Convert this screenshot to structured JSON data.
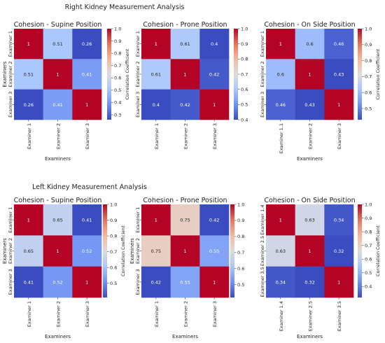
{
  "figure": {
    "sections": [
      {
        "title": "Right Kidney Measurement Analysis"
      },
      {
        "title": "Left Kidney Measurement Analysis"
      }
    ]
  },
  "colorbar_label": "Correlation Coefficient",
  "colormap": {
    "name": "coolwarm",
    "stops": [
      "#3b4cc0",
      "#6f92f3",
      "#aac7fd",
      "#dddcdc",
      "#f7b89c",
      "#e7745b",
      "#b40426"
    ]
  },
  "chart_data": [
    {
      "type": "heatmap",
      "title": "Cohesion - Supine Position",
      "xlabel": "Examiners",
      "ylabel": "Examiners",
      "x_ticks": [
        "Examiner 1",
        "Examiner 2",
        "Examiner 3"
      ],
      "y_ticks": [
        "Examiner 1",
        "Examiner 2",
        "Examiner 3"
      ],
      "values": [
        [
          1,
          0.51,
          0.26
        ],
        [
          0.51,
          1,
          0.41
        ],
        [
          0.26,
          0.41,
          1
        ]
      ],
      "labels": [
        [
          "1",
          "0.51",
          "0.26"
        ],
        [
          "0.51",
          "1",
          "0.41"
        ],
        [
          "0.26",
          "0.41",
          "1"
        ]
      ],
      "vmin": 0.26,
      "vmax": 1,
      "colorbar_ticks": [
        "1.0",
        "0.9",
        "0.8",
        "0.7",
        "0.6",
        "0.5",
        "0.4",
        "0.3"
      ],
      "colorbar_tick_values": [
        1.0,
        0.9,
        0.8,
        0.7,
        0.6,
        0.5,
        0.4,
        0.3
      ],
      "show_colorbar_label": true
    },
    {
      "type": "heatmap",
      "title": "Cohesion - Prone Position",
      "xlabel": "",
      "ylabel": "",
      "x_ticks": [
        "Examiner 1",
        "Examiner 2",
        "Examiner 3"
      ],
      "y_ticks": [
        "Examiner 1",
        "Examiner 2",
        "Examiner 3"
      ],
      "values": [
        [
          1,
          0.61,
          0.4
        ],
        [
          0.61,
          1,
          0.42
        ],
        [
          0.4,
          0.42,
          1
        ]
      ],
      "labels": [
        [
          "1",
          "0.61",
          "0.4"
        ],
        [
          "0.61",
          "1",
          "0.42"
        ],
        [
          "0.4",
          "0.42",
          "1"
        ]
      ],
      "vmin": 0.4,
      "vmax": 1,
      "colorbar_ticks": [
        "1.0",
        "0.9",
        "0.8",
        "0.7",
        "0.6",
        "0.5",
        "0.4"
      ],
      "colorbar_tick_values": [
        1.0,
        0.9,
        0.8,
        0.7,
        0.6,
        0.5,
        0.4
      ],
      "show_colorbar_label": false
    },
    {
      "type": "heatmap",
      "title": "Cohesion - On Side Position",
      "xlabel": "Examiners",
      "ylabel": "",
      "x_ticks": [
        "Examiner 1.1",
        "Examiner 2",
        "Examiner 3"
      ],
      "y_ticks": [
        "Examiner 1",
        "Examiner 2",
        "Examiner 3"
      ],
      "values": [
        [
          1,
          0.6,
          0.46
        ],
        [
          0.6,
          1,
          0.43
        ],
        [
          0.46,
          0.43,
          1
        ]
      ],
      "labels": [
        [
          "1",
          "0.6",
          "0.46"
        ],
        [
          "0.6",
          "1",
          "0.43"
        ],
        [
          "0.46",
          "0.43",
          "1"
        ]
      ],
      "vmin": 0.43,
      "vmax": 1,
      "colorbar_ticks": [
        "1.0",
        "0.9",
        "0.8",
        "0.7",
        "0.6",
        "0.5"
      ],
      "colorbar_tick_values": [
        1.0,
        0.9,
        0.8,
        0.7,
        0.6,
        0.5
      ],
      "show_colorbar_label": true
    },
    {
      "type": "heatmap",
      "title": "Cohesion - Supine Position",
      "xlabel": "Examiners",
      "ylabel": "Examiners",
      "x_ticks": [
        "Examiner 1",
        "Examiner 2",
        "Examiner 3"
      ],
      "y_ticks": [
        "Examiner 1",
        "Examiner 2",
        "Examiner 3"
      ],
      "values": [
        [
          1,
          0.65,
          0.41
        ],
        [
          0.65,
          1,
          0.52
        ],
        [
          0.41,
          0.52,
          1
        ]
      ],
      "labels": [
        [
          "1",
          "0.65",
          "0.41"
        ],
        [
          "0.65",
          "1",
          "0.52"
        ],
        [
          "0.41",
          "0.52",
          "1"
        ]
      ],
      "vmin": 0.41,
      "vmax": 1,
      "colorbar_ticks": [
        "1.0",
        "0.9",
        "0.8",
        "0.7",
        "0.6",
        "0.5"
      ],
      "colorbar_tick_values": [
        1.0,
        0.9,
        0.8,
        0.7,
        0.6,
        0.5
      ],
      "show_colorbar_label": true
    },
    {
      "type": "heatmap",
      "title": "Cohesion - Prone Position",
      "xlabel": "Examiners",
      "ylabel": "Examiners",
      "x_ticks": [
        "Examiner 1",
        "Examiner 2",
        "Examiner 3"
      ],
      "y_ticks": [
        "Examiner 1",
        "Examiner 2",
        "Examiner 3"
      ],
      "values": [
        [
          1,
          0.75,
          0.42
        ],
        [
          0.75,
          1,
          0.55
        ],
        [
          0.42,
          0.55,
          1
        ]
      ],
      "labels": [
        [
          "1",
          "0.75",
          "0.42"
        ],
        [
          "0.75",
          "1",
          "0.55"
        ],
        [
          "0.42",
          "0.55",
          "1"
        ]
      ],
      "vmin": 0.42,
      "vmax": 1,
      "colorbar_ticks": [
        "1.0",
        "0.9",
        "0.8",
        "0.7",
        "0.6",
        "0.5"
      ],
      "colorbar_tick_values": [
        1.0,
        0.9,
        0.8,
        0.7,
        0.6,
        0.5
      ],
      "show_colorbar_label": false
    },
    {
      "type": "heatmap",
      "title": "Cohesion - On Side Position",
      "xlabel": "Examiners",
      "ylabel": "",
      "x_ticks": [
        "Examiner 1.4",
        "Examiner 2.5",
        "Examiner 3.5"
      ],
      "y_ticks": [
        "Examiner 1.4",
        "Examiner 2.5",
        "Examiner 3.5"
      ],
      "values": [
        [
          1,
          0.63,
          0.34
        ],
        [
          0.63,
          1,
          0.32
        ],
        [
          0.34,
          0.32,
          1
        ]
      ],
      "labels": [
        [
          "1",
          "0.63",
          "0.34"
        ],
        [
          "0.63",
          "1",
          "0.32"
        ],
        [
          "0.34",
          "0.32",
          "1"
        ]
      ],
      "vmin": 0.32,
      "vmax": 1,
      "colorbar_ticks": [
        "1.0",
        "0.9",
        "0.8",
        "0.7",
        "0.6",
        "0.5",
        "0.4"
      ],
      "colorbar_tick_values": [
        1.0,
        0.9,
        0.8,
        0.7,
        0.6,
        0.5,
        0.4
      ],
      "show_colorbar_label": true
    }
  ]
}
